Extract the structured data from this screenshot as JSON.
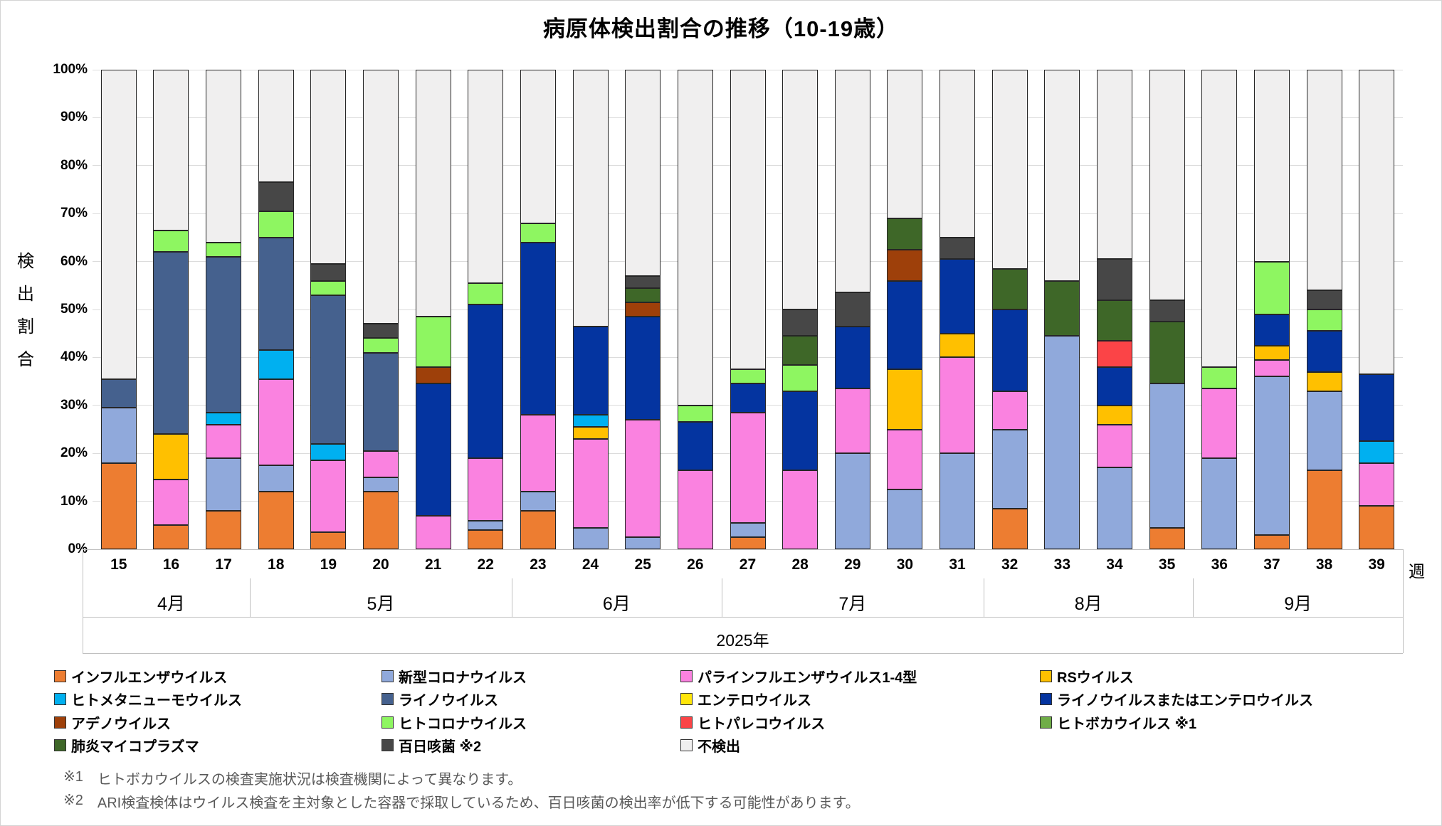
{
  "title": "病原体検出割合の推移（10-19歳）",
  "y_axis": {
    "title": "検出割合",
    "ticks": [
      "100%",
      "90%",
      "80%",
      "70%",
      "60%",
      "50%",
      "40%",
      "30%",
      "20%",
      "10%",
      "0%"
    ]
  },
  "x_axis": {
    "unit": "週",
    "year": "2025年",
    "month_groups": [
      {
        "label": "4月",
        "weeks": 3
      },
      {
        "label": "5月",
        "weeks": 5
      },
      {
        "label": "6月",
        "weeks": 4
      },
      {
        "label": "7月",
        "weeks": 5
      },
      {
        "label": "8月",
        "weeks": 4
      },
      {
        "label": "9月",
        "weeks": 4
      }
    ]
  },
  "pathogens": {
    "flu": {
      "label": "インフルエンザウイルス",
      "color": "#ED7D31"
    },
    "covid": {
      "label": "新型コロナウイルス",
      "color": "#90A9DB"
    },
    "para": {
      "label": "パラインフルエンザウイルス1-4型",
      "color": "#FA82E0"
    },
    "rs": {
      "label": "RSウイルス",
      "color": "#FFC000"
    },
    "hmpv": {
      "label": "ヒトメタニューモウイルス",
      "color": "#00B0F0"
    },
    "rhino": {
      "label": "ライノウイルス",
      "color": "#45618E"
    },
    "entero": {
      "label": "エンテロウイルス",
      "color": "#FFE60A"
    },
    "rhino_ent": {
      "label": "ライノウイルスまたはエンテロウイルス",
      "color": "#0434A0"
    },
    "adeno": {
      "label": "アデノウイルス",
      "color": "#9E400A"
    },
    "hcov": {
      "label": "ヒトコロナウイルス",
      "color": "#8EF661"
    },
    "parecho": {
      "label": "ヒトパレコウイルス",
      "color": "#FB4447"
    },
    "boca": {
      "label": "ヒトボカウイルス ※1",
      "color": "#6FAD47"
    },
    "myco": {
      "label": "肺炎マイコプラズマ",
      "color": "#3E6728"
    },
    "pert": {
      "label": "百日咳菌 ※2",
      "color": "#474747"
    },
    "nd": {
      "label": "不検出",
      "color": "#F0EFEF"
    }
  },
  "legend_order": [
    "flu",
    "covid",
    "para",
    "rs",
    "hmpv",
    "rhino",
    "entero",
    "rhino_ent",
    "adeno",
    "hcov",
    "parecho",
    "boca",
    "myco",
    "pert",
    "nd"
  ],
  "footnotes": [
    {
      "mark": "※1",
      "text": "ヒトボカウイルスの検査実施状況は検査機関によって異なります。"
    },
    {
      "mark": "※2",
      "text": "ARI検査検体はウイルス検査を主対象とした容器で採取しているため、百日咳菌の検出率が低下する可能性があります。"
    }
  ],
  "chart_data": {
    "type": "bar",
    "subtype": "100%-stacked",
    "title": "病原体検出割合の推移（10-19歳）",
    "ylabel": "検出割合",
    "xlabel": "週",
    "ylim": [
      0,
      100
    ],
    "grid": true,
    "legend_position": "bottom",
    "stack_order": [
      "flu",
      "covid",
      "para",
      "rs",
      "hmpv",
      "rhino",
      "entero",
      "rhino_ent",
      "adeno",
      "hcov",
      "parecho",
      "boca",
      "myco",
      "pert"
    ],
    "weeks": [
      {
        "week": 15,
        "values": {
          "flu": 18,
          "covid": 11.5,
          "rhino": 6
        }
      },
      {
        "week": 16,
        "values": {
          "flu": 5,
          "para": 9.5,
          "rs": 9.5,
          "rhino": 38,
          "hcov": 4.5
        }
      },
      {
        "week": 17,
        "values": {
          "flu": 8,
          "covid": 11,
          "para": 7,
          "hmpv": 2.5,
          "rhino": 32.5,
          "hcov": 3
        }
      },
      {
        "week": 18,
        "values": {
          "flu": 12,
          "covid": 5.5,
          "para": 18,
          "hmpv": 6,
          "rhino": 23.5,
          "hcov": 5.5,
          "pert": 6
        }
      },
      {
        "week": 19,
        "values": {
          "flu": 3.5,
          "para": 15,
          "hmpv": 3.5,
          "rhino": 31,
          "hcov": 3,
          "pert": 3.5
        }
      },
      {
        "week": 20,
        "values": {
          "flu": 12,
          "covid": 3,
          "para": 5.5,
          "rhino": 20.5,
          "hcov": 3,
          "pert": 3
        }
      },
      {
        "week": 21,
        "values": {
          "para": 7,
          "rhino_ent": 27.5,
          "adeno": 3.5,
          "hcov": 10.5
        }
      },
      {
        "week": 22,
        "values": {
          "flu": 4,
          "covid": 2,
          "para": 13,
          "rhino_ent": 32,
          "hcov": 4.5
        }
      },
      {
        "week": 23,
        "values": {
          "flu": 8,
          "covid": 4,
          "para": 16,
          "rhino_ent": 36,
          "hcov": 4
        }
      },
      {
        "week": 24,
        "values": {
          "covid": 4.5,
          "para": 18.5,
          "rs": 2.5,
          "hmpv": 2.5,
          "rhino_ent": 18.5
        }
      },
      {
        "week": 25,
        "values": {
          "covid": 2.5,
          "para": 24.5,
          "rhino_ent": 21.5,
          "adeno": 3,
          "myco": 3,
          "pert": 2.5
        }
      },
      {
        "week": 26,
        "values": {
          "para": 16.5,
          "rhino_ent": 10,
          "hcov": 3.5
        }
      },
      {
        "week": 27,
        "values": {
          "flu": 2.5,
          "covid": 3,
          "para": 23,
          "rhino_ent": 6,
          "hcov": 3
        }
      },
      {
        "week": 28,
        "values": {
          "para": 16.5,
          "rhino_ent": 16.5,
          "hcov": 5.5,
          "myco": 6,
          "pert": 5.5
        }
      },
      {
        "week": 29,
        "values": {
          "covid": 20,
          "para": 13.5,
          "rhino_ent": 13,
          "pert": 7
        }
      },
      {
        "week": 30,
        "values": {
          "covid": 12.5,
          "para": 12.5,
          "rs": 12.5,
          "rhino_ent": 18.5,
          "adeno": 6.5,
          "myco": 6.5
        }
      },
      {
        "week": 31,
        "values": {
          "covid": 20,
          "para": 20,
          "rs": 5,
          "rhino_ent": 15.5,
          "pert": 4.5
        }
      },
      {
        "week": 32,
        "values": {
          "flu": 8.5,
          "covid": 16.5,
          "para": 8,
          "rhino_ent": 17,
          "myco": 8.5
        }
      },
      {
        "week": 33,
        "values": {
          "covid": 44.5,
          "myco": 11.5
        }
      },
      {
        "week": 34,
        "values": {
          "covid": 17,
          "para": 9,
          "rs": 4,
          "rhino_ent": 8,
          "parecho": 5.5,
          "myco": 8.5,
          "pert": 8.5
        }
      },
      {
        "week": 35,
        "values": {
          "flu": 4.5,
          "covid": 30,
          "myco": 13,
          "pert": 4.5
        }
      },
      {
        "week": 36,
        "values": {
          "covid": 19,
          "para": 14.5,
          "hcov": 4.5
        }
      },
      {
        "week": 37,
        "values": {
          "flu": 3,
          "covid": 33,
          "para": 3.5,
          "rs": 3,
          "rhino_ent": 6.5,
          "hcov": 11
        }
      },
      {
        "week": 38,
        "values": {
          "flu": 16.5,
          "covid": 16.5,
          "rs": 4,
          "rhino_ent": 8.5,
          "hcov": 4.5,
          "pert": 4
        }
      },
      {
        "week": 39,
        "values": {
          "flu": 9,
          "para": 9,
          "hmpv": 4.5,
          "rhino_ent": 14
        }
      }
    ]
  }
}
